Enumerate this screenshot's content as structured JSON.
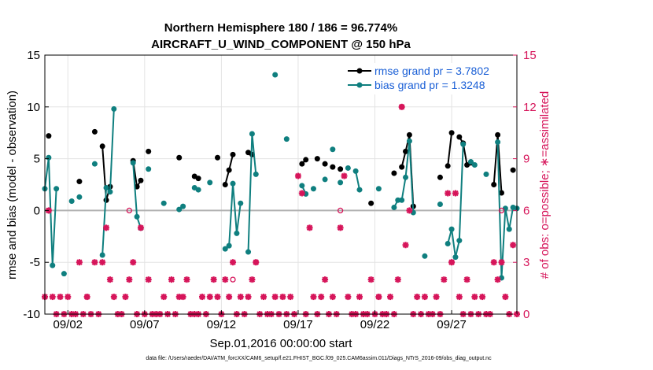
{
  "colors": {
    "rmse": "#000000",
    "bias": "#0f7f7f",
    "obs": "#d6155a",
    "zero_line": "#b0b0b0",
    "legend_text": "#1a5fd6"
  },
  "chart_data": {
    "type": "line",
    "title": "Northern Hemisphere 180 / 186 = 96.774%",
    "subtitle": "AIRCRAFT_U_WIND_COMPONENT @ 150 hPa",
    "xlabel": "Sep.01,2016 00:00:00 start",
    "ylabel": "rmse and bias (model - observation)",
    "y2label": "# of obs: o=possible; ∗=assimilated",
    "footer": "data file: /Users/raeder/DAI/ATM_forcXX/CAM6_setup/f.e21.FHIST_BGC.f09_025.CAM6assim.011/Diags_NTrS_2016-09/obs_diag_output.nc",
    "xlim": [
      0.5,
      31.25
    ],
    "ylim": [
      -10,
      15
    ],
    "y2lim": [
      0,
      15
    ],
    "x_ticks": [
      {
        "x": 2,
        "label": "09/02"
      },
      {
        "x": 7,
        "label": "09/07"
      },
      {
        "x": 12,
        "label": "09/12"
      },
      {
        "x": 17,
        "label": "09/17"
      },
      {
        "x": 22,
        "label": "09/22"
      },
      {
        "x": 27,
        "label": "09/27"
      }
    ],
    "y_ticks": [
      -10,
      -5,
      0,
      5,
      10,
      15
    ],
    "y2_ticks": [
      0,
      3,
      6,
      9,
      12,
      15
    ],
    "grid": true,
    "legend_position": "top-right",
    "legend": [
      {
        "key": "rmse",
        "label": "rmse grand pr = 3.7802"
      },
      {
        "key": "bias",
        "label": "bias grand pr = 1.3248"
      }
    ],
    "series": [
      {
        "name": "rmse grand pr = 3.7802",
        "key": "rmse",
        "points": [
          [
            0.75,
            7.2
          ],
          [
            2.75,
            2.8
          ],
          [
            3.75,
            7.6
          ],
          [
            4.25,
            6.2
          ],
          [
            4.5,
            1.0
          ],
          [
            4.75,
            2.3
          ],
          [
            6.25,
            4.8
          ],
          [
            6.5,
            2.3
          ],
          [
            6.75,
            2.9
          ],
          [
            7.25,
            5.7
          ],
          [
            9.25,
            5.1
          ],
          [
            10.25,
            3.3
          ],
          [
            10.5,
            3.1
          ],
          [
            11.75,
            5.1
          ],
          [
            12.25,
            2.5
          ],
          [
            12.5,
            3.9
          ],
          [
            12.75,
            5.4
          ],
          [
            13.75,
            5.6
          ],
          [
            14.0,
            5.4
          ],
          [
            17.25,
            4.5
          ],
          [
            17.5,
            4.9
          ],
          [
            18.25,
            5.0
          ],
          [
            18.75,
            4.5
          ],
          [
            19.25,
            4.2
          ],
          [
            19.75,
            4.0
          ],
          [
            21.75,
            0.7
          ],
          [
            23.25,
            3.6
          ],
          [
            23.75,
            4.2
          ],
          [
            24.0,
            5.7
          ],
          [
            24.25,
            7.3
          ],
          [
            24.5,
            0.4
          ],
          [
            26.25,
            3.2
          ],
          [
            26.75,
            4.3
          ],
          [
            27.0,
            7.5
          ],
          [
            27.5,
            7.1
          ],
          [
            27.75,
            6.5
          ],
          [
            28.0,
            4.4
          ],
          [
            28.25,
            4.6
          ],
          [
            29.75,
            2.5
          ],
          [
            30.0,
            7.3
          ],
          [
            30.25,
            1.7
          ],
          [
            31.0,
            3.9
          ]
        ]
      },
      {
        "name": "bias grand pr = 1.3248",
        "key": "bias",
        "points": [
          [
            0.5,
            2.1
          ],
          [
            0.75,
            5.1
          ],
          [
            1.0,
            -5.3
          ],
          [
            1.25,
            2.1
          ],
          [
            1.75,
            -6.1
          ],
          [
            2.25,
            0.9
          ],
          [
            2.75,
            1.3
          ],
          [
            3.75,
            4.5
          ],
          [
            4.25,
            -4.3
          ],
          [
            4.5,
            2.2
          ],
          [
            4.75,
            1.8
          ],
          [
            5.0,
            9.8
          ],
          [
            6.25,
            4.6
          ],
          [
            6.5,
            -0.6
          ],
          [
            6.75,
            -1.7
          ],
          [
            7.25,
            4.0
          ],
          [
            8.25,
            0.7
          ],
          [
            9.25,
            0.1
          ],
          [
            9.5,
            0.4
          ],
          [
            10.25,
            2.2
          ],
          [
            10.5,
            2.0
          ],
          [
            11.25,
            2.7
          ],
          [
            12.25,
            -3.7
          ],
          [
            12.5,
            -3.4
          ],
          [
            12.75,
            2.6
          ],
          [
            13.0,
            -2.2
          ],
          [
            13.25,
            0.7
          ],
          [
            13.75,
            -4.0
          ],
          [
            14.0,
            7.4
          ],
          [
            14.25,
            3.5
          ],
          [
            15.5,
            13.1
          ],
          [
            16.25,
            6.9
          ],
          [
            17.25,
            2.4
          ],
          [
            17.5,
            1.6
          ],
          [
            18.0,
            2.1
          ],
          [
            18.75,
            3.0
          ],
          [
            19.25,
            5.9
          ],
          [
            19.75,
            2.7
          ],
          [
            20.25,
            4.1
          ],
          [
            20.75,
            3.8
          ],
          [
            21.0,
            2.0
          ],
          [
            22.25,
            2.1
          ],
          [
            23.25,
            0.3
          ],
          [
            23.5,
            1.0
          ],
          [
            23.75,
            1.0
          ],
          [
            24.0,
            3.2
          ],
          [
            24.25,
            6.7
          ],
          [
            24.5,
            -0.2
          ],
          [
            25.25,
            -4.4
          ],
          [
            26.25,
            0.6
          ],
          [
            26.75,
            -3.2
          ],
          [
            27.0,
            -1.8
          ],
          [
            27.25,
            -4.5
          ],
          [
            27.5,
            -2.9
          ],
          [
            27.75,
            6.4
          ],
          [
            28.25,
            4.7
          ],
          [
            28.5,
            4.4
          ],
          [
            29.25,
            3.5
          ],
          [
            30.0,
            6.6
          ],
          [
            30.25,
            -6.5
          ],
          [
            30.5,
            0.2
          ],
          [
            30.75,
            -1.8
          ],
          [
            31.0,
            0.3
          ],
          [
            31.25,
            0.2
          ]
        ]
      }
    ],
    "obs_possible": [
      [
        0.75,
        6
      ],
      [
        3.25,
        1
      ],
      [
        6.0,
        6
      ],
      [
        12.75,
        2
      ],
      [
        19.75,
        6
      ],
      [
        23.75,
        12
      ],
      [
        30.25,
        6
      ],
      [
        27.0,
        3
      ],
      [
        22.25,
        1
      ],
      [
        14.25,
        3
      ]
    ],
    "obs_assimilated": [
      [
        0.5,
        1
      ],
      [
        0.75,
        6
      ],
      [
        1.0,
        1
      ],
      [
        1.25,
        0
      ],
      [
        1.5,
        1
      ],
      [
        1.75,
        0
      ],
      [
        2.0,
        1
      ],
      [
        2.25,
        0
      ],
      [
        2.5,
        0
      ],
      [
        2.75,
        3
      ],
      [
        3.0,
        0
      ],
      [
        3.25,
        1
      ],
      [
        3.5,
        0
      ],
      [
        3.75,
        3
      ],
      [
        4.0,
        0
      ],
      [
        4.25,
        3
      ],
      [
        4.5,
        5
      ],
      [
        4.75,
        2
      ],
      [
        5.0,
        1
      ],
      [
        5.25,
        0
      ],
      [
        5.5,
        0
      ],
      [
        5.75,
        1
      ],
      [
        6.0,
        2
      ],
      [
        6.25,
        3
      ],
      [
        6.5,
        0
      ],
      [
        6.75,
        5
      ],
      [
        7.0,
        0
      ],
      [
        7.25,
        2
      ],
      [
        7.5,
        0
      ],
      [
        7.75,
        0
      ],
      [
        8.0,
        0
      ],
      [
        8.25,
        1
      ],
      [
        8.5,
        0
      ],
      [
        8.75,
        2
      ],
      [
        9.0,
        0
      ],
      [
        9.25,
        1
      ],
      [
        9.5,
        1
      ],
      [
        9.75,
        2
      ],
      [
        10.0,
        0
      ],
      [
        10.25,
        0
      ],
      [
        10.5,
        0
      ],
      [
        10.75,
        1
      ],
      [
        11.0,
        0
      ],
      [
        11.25,
        1
      ],
      [
        11.5,
        2
      ],
      [
        11.75,
        1
      ],
      [
        12.0,
        0
      ],
      [
        12.25,
        2
      ],
      [
        12.5,
        1
      ],
      [
        12.75,
        3
      ],
      [
        13.0,
        0
      ],
      [
        13.25,
        1
      ],
      [
        13.5,
        0
      ],
      [
        13.75,
        1
      ],
      [
        14.0,
        2
      ],
      [
        14.25,
        3
      ],
      [
        14.5,
        0
      ],
      [
        14.75,
        1
      ],
      [
        15.0,
        0
      ],
      [
        15.25,
        0
      ],
      [
        15.5,
        1
      ],
      [
        15.75,
        0
      ],
      [
        16.0,
        1
      ],
      [
        16.25,
        0
      ],
      [
        16.5,
        1
      ],
      [
        16.75,
        0
      ],
      [
        17.0,
        8
      ],
      [
        17.25,
        7
      ],
      [
        17.5,
        0
      ],
      [
        17.75,
        5
      ],
      [
        18.0,
        1
      ],
      [
        18.25,
        0
      ],
      [
        18.5,
        1
      ],
      [
        18.75,
        2
      ],
      [
        19.0,
        0
      ],
      [
        19.25,
        1
      ],
      [
        19.5,
        0
      ],
      [
        19.75,
        5
      ],
      [
        20.0,
        8
      ],
      [
        20.25,
        1
      ],
      [
        20.5,
        0
      ],
      [
        20.75,
        0
      ],
      [
        21.0,
        1
      ],
      [
        21.25,
        0
      ],
      [
        21.5,
        0
      ],
      [
        21.75,
        2
      ],
      [
        22.0,
        0
      ],
      [
        22.25,
        1
      ],
      [
        22.5,
        0
      ],
      [
        22.75,
        0
      ],
      [
        23.0,
        1
      ],
      [
        23.25,
        0
      ],
      [
        23.5,
        2
      ],
      [
        23.75,
        12
      ],
      [
        24.0,
        4
      ],
      [
        24.25,
        6
      ],
      [
        24.5,
        0
      ],
      [
        24.75,
        1
      ],
      [
        25.0,
        0
      ],
      [
        25.25,
        1
      ],
      [
        25.5,
        0
      ],
      [
        25.75,
        0
      ],
      [
        26.0,
        1
      ],
      [
        26.25,
        0
      ],
      [
        26.5,
        2
      ],
      [
        26.75,
        7
      ],
      [
        27.0,
        3
      ],
      [
        27.25,
        7
      ],
      [
        27.5,
        1
      ],
      [
        27.75,
        0
      ],
      [
        28.0,
        2
      ],
      [
        28.25,
        0
      ],
      [
        28.5,
        1
      ],
      [
        28.75,
        0
      ],
      [
        29.0,
        1
      ],
      [
        29.25,
        0
      ],
      [
        29.5,
        0
      ],
      [
        29.75,
        3
      ],
      [
        30.0,
        2
      ],
      [
        30.25,
        3
      ],
      [
        30.5,
        1
      ],
      [
        30.75,
        0
      ],
      [
        31.0,
        4
      ],
      [
        31.25,
        0
      ]
    ]
  }
}
